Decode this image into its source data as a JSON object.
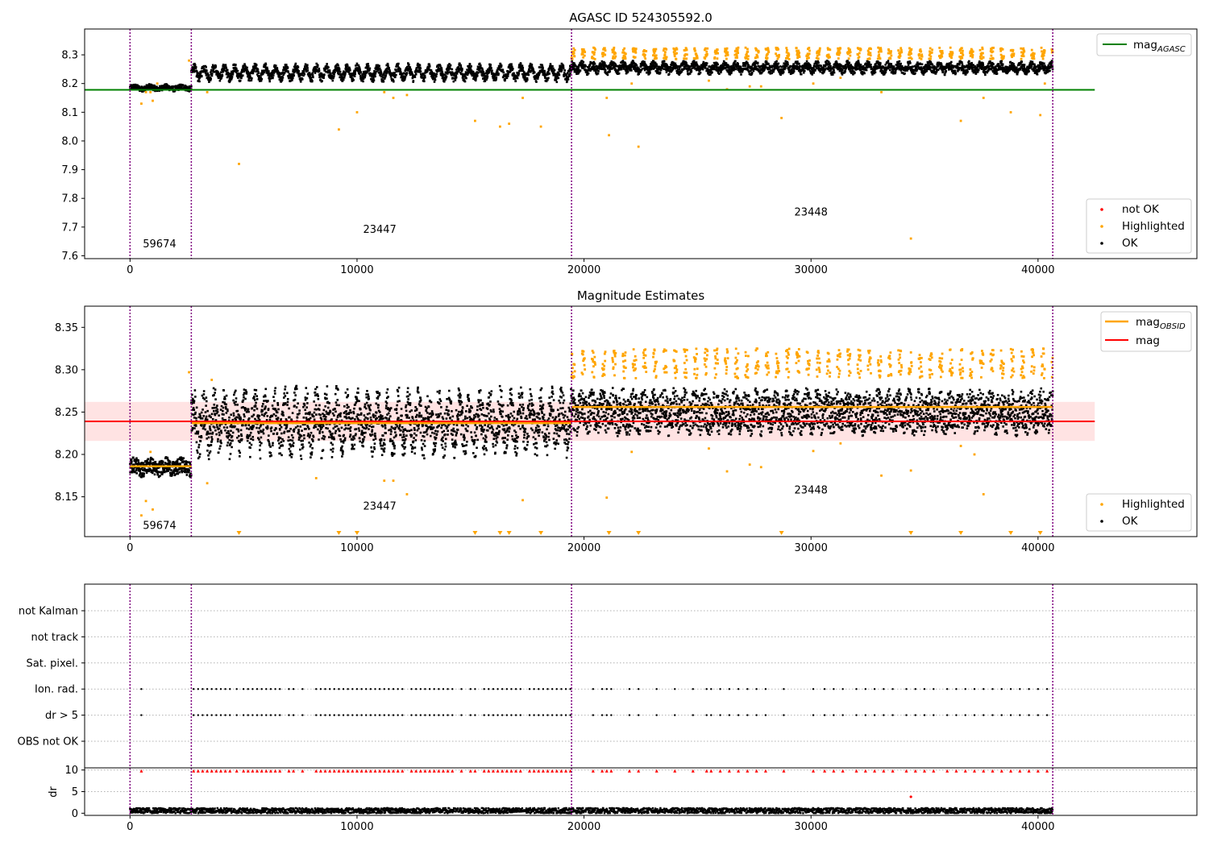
{
  "chart_data": [
    {
      "type": "scatter",
      "title": "AGASC ID 524305592.0",
      "xlim": [
        -2000,
        47000
      ],
      "ylim": [
        7.59,
        8.39
      ],
      "x_ticks": [
        0,
        10000,
        20000,
        30000,
        40000
      ],
      "y_ticks": [
        7.6,
        7.7,
        7.8,
        7.9,
        8.0,
        8.1,
        8.2,
        8.3
      ],
      "obsid_boundaries": [
        0,
        2700,
        19450,
        40650
      ],
      "obsid_labels": [
        {
          "text": "59674",
          "x": 1300,
          "y": 7.63
        },
        {
          "text": "23447",
          "x": 11000,
          "y": 7.68
        },
        {
          "text": "23448",
          "x": 30000,
          "y": 7.74
        }
      ],
      "reference_lines": [
        {
          "name": "mag_AGASC",
          "legend_main": "mag",
          "legend_sub": "AGASC",
          "value": 8.178,
          "x_range": [
            -2000,
            42500
          ],
          "color": "#008000"
        }
      ],
      "bands": [
        {
          "x_range": [
            0,
            2700
          ],
          "center": 8.185,
          "amp": 0.004,
          "width": 0.018,
          "period": 700
        },
        {
          "x_range": [
            2700,
            19450
          ],
          "center": 8.238,
          "amp": 0.018,
          "width": 0.03,
          "period": 450
        },
        {
          "x_range": [
            19450,
            40650
          ],
          "center": 8.255,
          "amp": 0.01,
          "width": 0.03,
          "period": 450
        }
      ],
      "highlighted_band": {
        "x_range": [
          19450,
          40650
        ],
        "y_range": [
          8.285,
          8.325
        ],
        "period": 450
      },
      "outliers": [
        [
          500,
          8.13
        ],
        [
          700,
          8.17
        ],
        [
          900,
          8.17
        ],
        [
          1000,
          8.14
        ],
        [
          1200,
          8.2
        ],
        [
          2600,
          8.28
        ],
        [
          3400,
          8.17
        ],
        [
          4800,
          7.92
        ],
        [
          9200,
          8.04
        ],
        [
          10000,
          8.1
        ],
        [
          11200,
          8.17
        ],
        [
          11600,
          8.15
        ],
        [
          12200,
          8.16
        ],
        [
          15200,
          8.07
        ],
        [
          16300,
          8.05
        ],
        [
          16700,
          8.06
        ],
        [
          17300,
          8.15
        ],
        [
          18100,
          8.05
        ],
        [
          21000,
          8.15
        ],
        [
          21100,
          8.02
        ],
        [
          22100,
          8.2
        ],
        [
          22400,
          7.98
        ],
        [
          25500,
          8.21
        ],
        [
          26300,
          8.18
        ],
        [
          27300,
          8.19
        ],
        [
          27800,
          8.19
        ],
        [
          28700,
          8.08
        ],
        [
          30100,
          8.2
        ],
        [
          31300,
          8.22
        ],
        [
          33100,
          8.17
        ],
        [
          34400,
          7.66
        ],
        [
          36600,
          8.07
        ],
        [
          37600,
          8.15
        ],
        [
          38800,
          8.1
        ],
        [
          40100,
          8.09
        ],
        [
          40300,
          8.2
        ]
      ],
      "legend": [
        {
          "label": "not OK",
          "color": "#ff0000"
        },
        {
          "label": "Highlighted",
          "color": "#ffa500"
        },
        {
          "label": "OK",
          "color": "#000000"
        }
      ],
      "legend_loc_upper": "top-right",
      "legend_loc_lower": "bottom-right"
    },
    {
      "type": "scatter",
      "title": "Magnitude Estimates",
      "xlim": [
        -2000,
        47000
      ],
      "ylim": [
        8.103,
        8.375
      ],
      "x_ticks": [
        0,
        10000,
        20000,
        30000,
        40000
      ],
      "y_ticks": [
        8.15,
        8.2,
        8.25,
        8.3,
        8.35
      ],
      "obsid_boundaries": [
        0,
        2700,
        19450,
        40650
      ],
      "obsid_labels": [
        {
          "text": "59674",
          "x": 1300,
          "y": 8.112
        },
        {
          "text": "23447",
          "x": 11000,
          "y": 8.135
        },
        {
          "text": "23448",
          "x": 30000,
          "y": 8.154
        }
      ],
      "mag_line": {
        "name": "mag",
        "value": 8.239,
        "band": [
          8.216,
          8.262
        ],
        "x_range": [
          -2000,
          42500
        ],
        "color": "#ff0000"
      },
      "mag_obsid": [
        {
          "x_range": [
            0,
            2700
          ],
          "value": 8.186
        },
        {
          "x_range": [
            2700,
            19450
          ],
          "value": 8.237
        },
        {
          "x_range": [
            19450,
            40650
          ],
          "value": 8.256
        }
      ],
      "bands": [
        {
          "x_range": [
            0,
            2700
          ],
          "center": 8.185,
          "amp": 0.003,
          "width": 0.018,
          "period": 700
        },
        {
          "x_range": [
            2700,
            19450
          ],
          "center": 8.238,
          "amp": 0.018,
          "width": 0.052,
          "period": 450
        },
        {
          "x_range": [
            19450,
            40650
          ],
          "center": 8.25,
          "amp": 0.006,
          "width": 0.045,
          "period": 450
        }
      ],
      "highlighted_band": {
        "x_range": [
          19450,
          40650
        ],
        "y_range": [
          8.29,
          8.325
        ],
        "period": 450
      },
      "outliers": [
        [
          500,
          8.128
        ],
        [
          700,
          8.145
        ],
        [
          900,
          8.203
        ],
        [
          1000,
          8.135
        ],
        [
          2600,
          8.297
        ],
        [
          3400,
          8.166
        ],
        [
          3600,
          8.288
        ],
        [
          8200,
          8.172
        ],
        [
          11200,
          8.169
        ],
        [
          11600,
          8.169
        ],
        [
          12200,
          8.153
        ],
        [
          17300,
          8.146
        ],
        [
          21000,
          8.149
        ],
        [
          22100,
          8.203
        ],
        [
          25500,
          8.207
        ],
        [
          26300,
          8.18
        ],
        [
          27300,
          8.188
        ],
        [
          27800,
          8.185
        ],
        [
          30100,
          8.204
        ],
        [
          31300,
          8.213
        ],
        [
          33100,
          8.175
        ],
        [
          34400,
          8.181
        ],
        [
          36600,
          8.21
        ],
        [
          37600,
          8.153
        ],
        [
          37200,
          8.2
        ]
      ],
      "below_range_markers": [
        4800,
        9200,
        10000,
        15200,
        16300,
        16700,
        18100,
        21100,
        22400,
        28700,
        34400,
        36600,
        38800,
        40100
      ],
      "legend_upper": [
        {
          "label": "mag",
          "sub": "OBSID",
          "color": "#ffa500"
        },
        {
          "label": "mag",
          "sub": "",
          "color": "#ff0000"
        }
      ],
      "legend_lower": [
        {
          "label": "Highlighted",
          "color": "#ffa500"
        },
        {
          "label": "OK",
          "color": "#000000"
        }
      ]
    },
    {
      "type": "scatter",
      "title": "",
      "xlim": [
        -2000,
        47000
      ],
      "x_ticks": [
        0,
        10000,
        20000,
        30000,
        40000
      ],
      "obsid_boundaries": [
        0,
        2700,
        19450,
        40650
      ],
      "flag_rows": [
        "not Kalman",
        "not track",
        "Sat. pixel.",
        "Ion. rad.",
        "dr > 5",
        "OBS not OK"
      ],
      "flag_points": {
        "Ion. rad.": [
          500,
          2800,
          3000,
          3200,
          3400,
          3600,
          3800,
          4000,
          4200,
          4400,
          4700,
          5000,
          5200,
          5400,
          5600,
          5800,
          6000,
          6200,
          6400,
          6600,
          7000,
          7200,
          7600,
          8200,
          8400,
          8600,
          8800,
          9000,
          9200,
          9400,
          9600,
          9800,
          10000,
          10200,
          10400,
          10600,
          10800,
          11000,
          11200,
          11400,
          11600,
          11800,
          12000,
          12400,
          12600,
          12800,
          13000,
          13200,
          13400,
          13600,
          13800,
          14000,
          14200,
          14600,
          15000,
          15200,
          15600,
          15800,
          16000,
          16200,
          16400,
          16600,
          16800,
          17000,
          17200,
          17600,
          17800,
          18000,
          18200,
          18400,
          18600,
          18800,
          19000,
          19200,
          19400,
          20400,
          20800,
          21000,
          21200,
          22000,
          22400,
          23200,
          24000,
          24800,
          25400,
          25600,
          26000,
          26400,
          26800,
          27200,
          27600,
          28000,
          28800,
          30100,
          30600,
          31000,
          31400,
          32000,
          32400,
          32800,
          33200,
          33600,
          34200,
          34600,
          35000,
          35400,
          36000,
          36400,
          36800,
          37200,
          37600,
          38000,
          38400,
          38800,
          39200,
          39600,
          40000,
          40400
        ],
        "dr > 5": [
          500,
          2800,
          3000,
          3200,
          3400,
          3600,
          3800,
          4000,
          4200,
          4400,
          4700,
          5000,
          5200,
          5400,
          5600,
          5800,
          6000,
          6200,
          6400,
          6600,
          7000,
          7200,
          7600,
          8200,
          8400,
          8600,
          8800,
          9000,
          9200,
          9400,
          9600,
          9800,
          10000,
          10200,
          10400,
          10600,
          10800,
          11000,
          11200,
          11400,
          11600,
          11800,
          12000,
          12400,
          12600,
          12800,
          13000,
          13200,
          13400,
          13600,
          13800,
          14000,
          14200,
          14600,
          15000,
          15200,
          15600,
          15800,
          16000,
          16200,
          16400,
          16600,
          16800,
          17000,
          17200,
          17600,
          17800,
          18000,
          18200,
          18400,
          18600,
          18800,
          19000,
          19200,
          19400,
          20400,
          20800,
          21000,
          21200,
          22000,
          22400,
          23200,
          24000,
          24800,
          25400,
          25600,
          26000,
          26400,
          26800,
          27200,
          27600,
          28000,
          28800,
          30100,
          30600,
          31000,
          31400,
          32000,
          32400,
          32800,
          33200,
          33600,
          34200,
          34600,
          35000,
          35400,
          36000,
          36400,
          36800,
          37200,
          37600,
          38000,
          38400,
          38800,
          39200,
          39600,
          40000,
          40400
        ]
      }
    },
    {
      "type": "scatter",
      "title": "",
      "xlim": [
        -2000,
        47000
      ],
      "ylim": [
        -0.5,
        10.5
      ],
      "x_ticks": [
        0,
        10000,
        20000,
        30000,
        40000
      ],
      "x_tick_labels": [
        "0",
        "10000",
        "20000",
        "30000",
        "40000"
      ],
      "y_ticks": [
        0,
        5,
        10
      ],
      "ylabel": "dr",
      "obsid_boundaries": [
        0,
        2700,
        19450,
        40650
      ],
      "clipped_points_at": 9.8,
      "clipped_x": [
        500,
        2800,
        3000,
        3200,
        3400,
        3600,
        3800,
        4000,
        4200,
        4400,
        4700,
        5000,
        5200,
        5400,
        5600,
        5800,
        6000,
        6200,
        6400,
        6600,
        7000,
        7200,
        7600,
        8200,
        8400,
        8600,
        8800,
        9000,
        9200,
        9400,
        9600,
        9800,
        10000,
        10200,
        10400,
        10600,
        10800,
        11000,
        11200,
        11400,
        11600,
        11800,
        12000,
        12400,
        12600,
        12800,
        13000,
        13200,
        13400,
        13600,
        13800,
        14000,
        14200,
        14600,
        15000,
        15200,
        15600,
        15800,
        16000,
        16200,
        16400,
        16600,
        16800,
        17000,
        17200,
        17600,
        17800,
        18000,
        18200,
        18400,
        18600,
        18800,
        19000,
        19200,
        19400,
        20400,
        20800,
        21000,
        21200,
        22000,
        22400,
        23200,
        24000,
        24800,
        25400,
        25600,
        26000,
        26400,
        26800,
        27200,
        27600,
        28000,
        28800,
        30100,
        30600,
        31000,
        31400,
        32000,
        32400,
        32800,
        33200,
        33600,
        34200,
        34600,
        35000,
        35400,
        36000,
        36400,
        36800,
        37200,
        37600,
        38000,
        38400,
        38800,
        39200,
        39600,
        40000,
        40400
      ],
      "isolated_point": [
        34400,
        3.8
      ],
      "baseline_range": [
        0,
        1.2
      ]
    }
  ]
}
